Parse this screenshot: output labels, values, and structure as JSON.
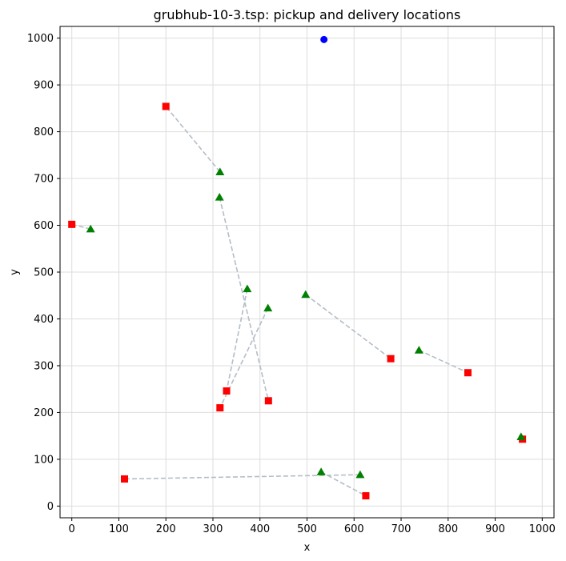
{
  "chart_data": {
    "type": "scatter",
    "title": "grubhub-10-3.tsp: pickup and delivery locations",
    "xlabel": "x",
    "ylabel": "y",
    "xlim": [
      -25,
      1025
    ],
    "ylim": [
      -25,
      1025
    ],
    "xticks": [
      0,
      100,
      200,
      300,
      400,
      500,
      600,
      700,
      800,
      900,
      1000
    ],
    "yticks": [
      0,
      100,
      200,
      300,
      400,
      500,
      600,
      700,
      800,
      900,
      1000
    ],
    "grid": true,
    "depot": {
      "x": 536,
      "y": 997,
      "color": "#0000ff"
    },
    "pickups": [
      {
        "x": 315,
        "y": 714
      },
      {
        "x": 40,
        "y": 592
      },
      {
        "x": 314,
        "y": 660
      },
      {
        "x": 373,
        "y": 464
      },
      {
        "x": 417,
        "y": 423
      },
      {
        "x": 497,
        "y": 452
      },
      {
        "x": 738,
        "y": 333
      },
      {
        "x": 955,
        "y": 148
      },
      {
        "x": 530,
        "y": 73
      },
      {
        "x": 613,
        "y": 67
      }
    ],
    "deliveries": [
      {
        "x": 200,
        "y": 854
      },
      {
        "x": 0,
        "y": 602
      },
      {
        "x": 418,
        "y": 225
      },
      {
        "x": 329,
        "y": 246
      },
      {
        "x": 315,
        "y": 210
      },
      {
        "x": 678,
        "y": 315
      },
      {
        "x": 842,
        "y": 285
      },
      {
        "x": 958,
        "y": 143
      },
      {
        "x": 625,
        "y": 22
      },
      {
        "x": 112,
        "y": 58
      }
    ],
    "pairs": [
      [
        0,
        0
      ],
      [
        1,
        1
      ],
      [
        2,
        2
      ],
      [
        3,
        3
      ],
      [
        4,
        4
      ],
      [
        5,
        5
      ],
      [
        6,
        6
      ],
      [
        7,
        7
      ],
      [
        8,
        8
      ],
      [
        9,
        9
      ]
    ],
    "colors": {
      "pickup": "#008000",
      "delivery": "#ff0000",
      "link": "#b4bdc7",
      "grid": "#dddddd"
    }
  }
}
